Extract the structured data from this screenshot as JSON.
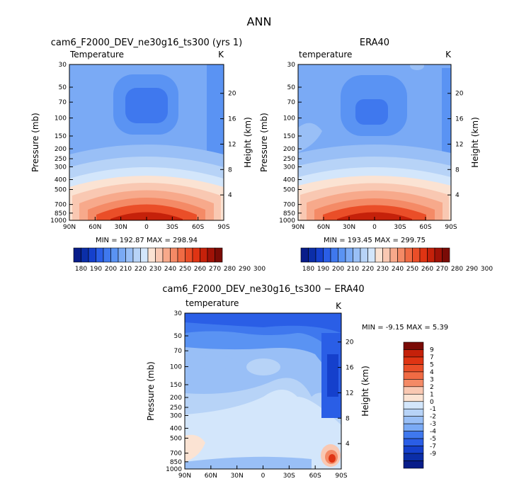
{
  "title": "ANN",
  "colors": {
    "cool": [
      "#081d8a",
      "#0b2ea8",
      "#1540cc",
      "#2a5ee6",
      "#3f78ee",
      "#5a93f3",
      "#7aaaf5",
      "#99bff6",
      "#b7d3f7",
      "#d3e6fb"
    ],
    "warm": [
      "#fbe3d3",
      "#f9c8b2",
      "#f7a98b",
      "#f48a66",
      "#f06b44",
      "#ea4e28",
      "#df3413",
      "#c5210a",
      "#a01207",
      "#7a0b06"
    ]
  },
  "chart_data": [
    {
      "type": "contour",
      "title": "cam6_F2000_DEV_ne30g16_ts300 (yrs 1)",
      "subtitle_left": "Temperature",
      "subtitle_right": "K",
      "xlabel": "",
      "ylabel": "Pressure (mb)",
      "ylabel_right": "Height (km)",
      "x_ticks": [
        "90N",
        "60N",
        "30N",
        "0",
        "30S",
        "60S",
        "90S"
      ],
      "y_ticks": [
        "30",
        "50",
        "70",
        "100",
        "150",
        "200",
        "250",
        "300",
        "400",
        "500",
        "700",
        "850",
        "1000"
      ],
      "y_ticks_right": [
        "20",
        "16",
        "12",
        "8",
        "4"
      ],
      "stats": {
        "min_label": "MIN =",
        "min": "192.87",
        "max_label": "MAX =",
        "max": "298.94"
      },
      "colorbar": {
        "labels": [
          "180",
          "190",
          "200",
          "210",
          "220",
          "230",
          "240",
          "250",
          "260",
          "270",
          "280",
          "290",
          "300"
        ]
      }
    },
    {
      "type": "contour",
      "title": "ERA40",
      "subtitle_left": "temperature",
      "subtitle_right": "K",
      "xlabel": "",
      "ylabel": "Pressure (mb)",
      "ylabel_right": "Height (km)",
      "x_ticks": [
        "90N",
        "60N",
        "30N",
        "0",
        "30S",
        "60S",
        "90S"
      ],
      "y_ticks": [
        "30",
        "50",
        "70",
        "100",
        "150",
        "200",
        "250",
        "300",
        "400",
        "500",
        "700",
        "850",
        "1000"
      ],
      "y_ticks_right": [
        "20",
        "16",
        "12",
        "8",
        "4"
      ],
      "stats": {
        "min_label": "MIN =",
        "min": "193.45",
        "max_label": "MAX =",
        "max": "299.75"
      },
      "colorbar": {
        "labels": [
          "180",
          "190",
          "200",
          "210",
          "220",
          "230",
          "240",
          "250",
          "260",
          "270",
          "280",
          "290",
          "300"
        ]
      }
    },
    {
      "type": "contour",
      "title": "cam6_F2000_DEV_ne30g16_ts300 − ERA40",
      "subtitle_left": "temperature",
      "subtitle_right": "K",
      "xlabel": "",
      "ylabel": "Pressure (mb)",
      "ylabel_right": "Height (km)",
      "x_ticks": [
        "90N",
        "60N",
        "30N",
        "0",
        "30S",
        "60S",
        "90S"
      ],
      "y_ticks": [
        "30",
        "50",
        "70",
        "100",
        "150",
        "200",
        "250",
        "300",
        "400",
        "500",
        "700",
        "850",
        "1000"
      ],
      "y_ticks_right": [
        "20",
        "16",
        "12",
        "8",
        "4"
      ],
      "stats": {
        "min_label": "MIN =",
        "min": "-9.15",
        "max_label": "MAX =",
        "max": "5.39"
      },
      "colorbar": {
        "labels": [
          "9",
          "7",
          "5",
          "4",
          "3",
          "2",
          "1",
          "0",
          "-1",
          "-2",
          "-3",
          "-4",
          "-5",
          "-7",
          "-9"
        ]
      }
    }
  ]
}
